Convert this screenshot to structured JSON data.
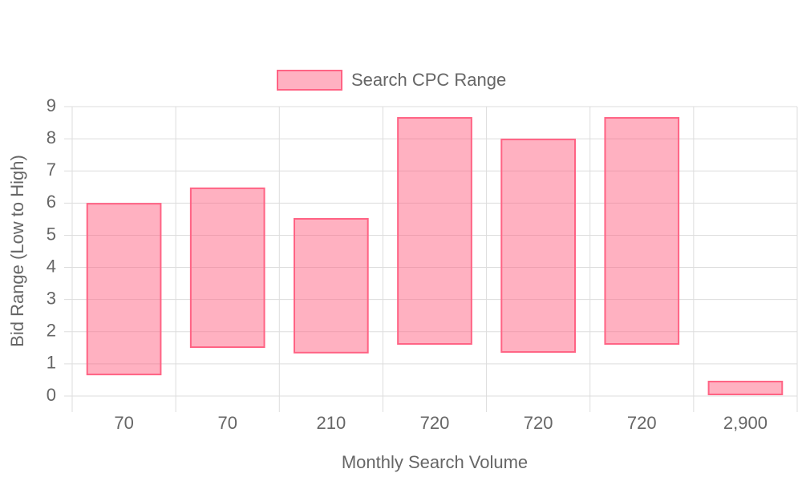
{
  "chart_data": {
    "type": "floating-bar",
    "x_label": "Monthly Search Volume",
    "y_label": "Bid Range (Low to High)",
    "categories": [
      "70",
      "70",
      "210",
      "720",
      "720",
      "720",
      "2,900"
    ],
    "series": [
      {
        "name": "Search CPC Range",
        "color": "#ff6384",
        "values": [
          [
            0.67,
            5.98
          ],
          [
            1.52,
            6.46
          ],
          [
            1.35,
            5.51
          ],
          [
            1.62,
            8.65
          ],
          [
            1.37,
            7.98
          ],
          [
            1.62,
            8.65
          ],
          [
            0.05,
            0.45
          ]
        ]
      }
    ],
    "ylim": [
      0,
      9
    ],
    "yticks": [
      0,
      1,
      2,
      3,
      4,
      5,
      6,
      7,
      8,
      9
    ],
    "grid": true,
    "legend": "top"
  }
}
